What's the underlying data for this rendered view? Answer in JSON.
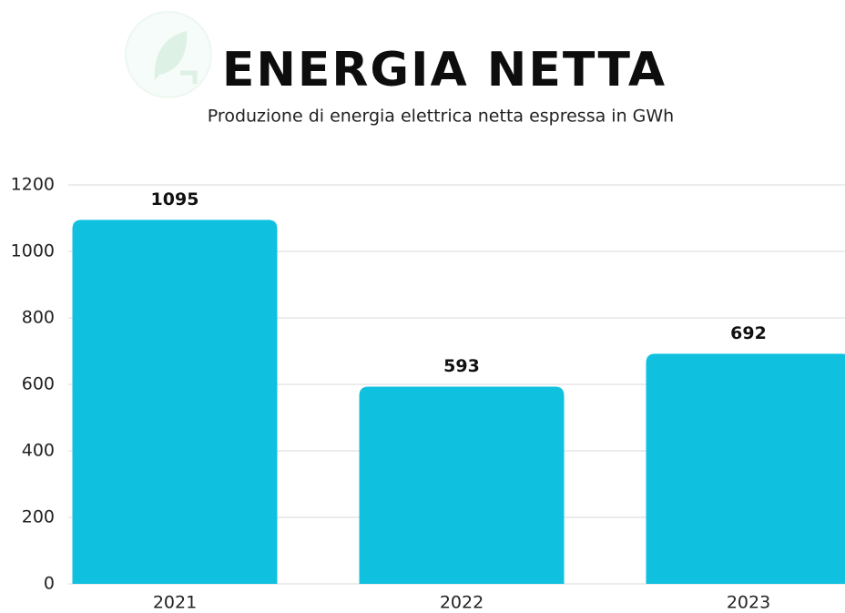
{
  "chart_data": {
    "type": "bar",
    "title": "ENERGIA NETTA",
    "subtitle": "Produzione di energia elettrica netta espressa in GWh",
    "categories": [
      "2021",
      "2022",
      "2023"
    ],
    "values": [
      1095,
      593,
      692
    ],
    "color": "#10c1df",
    "ylim": [
      0,
      1200
    ],
    "yticks": [
      0,
      200,
      400,
      600,
      800,
      1000,
      1200
    ],
    "grid": true
  }
}
